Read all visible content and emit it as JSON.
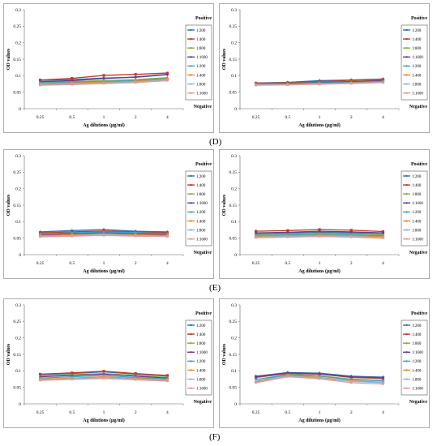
{
  "figure": {
    "labels": [
      {
        "id": "D",
        "text": "(D)"
      },
      {
        "id": "E",
        "text": "(E)"
      },
      {
        "id": "F",
        "text": "(F)"
      }
    ]
  },
  "series_colors": [
    "#3a6fb4",
    "#c0392b",
    "#86ae3a",
    "#6a3d8f",
    "#35a7c2",
    "#f08a24",
    "#8fb4e0",
    "#e39a9a"
  ],
  "chart_data": [
    {
      "type": "line",
      "ylabel": "OD values",
      "xlabel": "Ag dilutions (µg/ml)",
      "categories": [
        "0.25",
        "0.5",
        "1",
        "2",
        "4"
      ],
      "ylim": [
        0,
        0.3
      ],
      "yticks": [
        "0",
        "0.05",
        "0.1",
        "0.15",
        "0.2",
        "0.25",
        "0.3"
      ],
      "legend_top": "Positive",
      "legend_bottom": "Negative",
      "series": [
        {
          "name": "1:200",
          "values": [
            0.086,
            0.088,
            0.093,
            0.095,
            0.103
          ]
        },
        {
          "name": "1:400",
          "values": [
            0.087,
            0.092,
            0.101,
            0.104,
            0.108
          ]
        },
        {
          "name": "1:800",
          "values": [
            0.08,
            0.082,
            0.085,
            0.088,
            0.094
          ]
        },
        {
          "name": "1:1600",
          "values": [
            0.082,
            0.085,
            0.091,
            0.096,
            0.104
          ]
        },
        {
          "name": "1:200",
          "values": [
            0.078,
            0.08,
            0.082,
            0.085,
            0.092
          ]
        },
        {
          "name": "1:400",
          "values": [
            0.075,
            0.078,
            0.08,
            0.083,
            0.09
          ]
        },
        {
          "name": "1:800",
          "values": [
            0.073,
            0.075,
            0.078,
            0.081,
            0.087
          ]
        },
        {
          "name": "1:1600",
          "values": [
            0.071,
            0.073,
            0.076,
            0.079,
            0.085
          ]
        }
      ]
    },
    {
      "type": "line",
      "ylabel": "OD values",
      "xlabel": "Ag dilutions (µg/ml)",
      "categories": [
        "0.25",
        "0.5",
        "1",
        "2",
        "4"
      ],
      "ylim": [
        0,
        0.3
      ],
      "yticks": [
        "0",
        "0.05",
        "0.1",
        "0.15",
        "0.2",
        "0.25",
        "0.3"
      ],
      "legend_top": "Positive",
      "legend_bottom": "Negative",
      "series": [
        {
          "name": "1:200",
          "values": [
            0.078,
            0.08,
            0.085,
            0.087,
            0.09
          ]
        },
        {
          "name": "1:400",
          "values": [
            0.077,
            0.079,
            0.082,
            0.086,
            0.089
          ]
        },
        {
          "name": "1:800",
          "values": [
            0.076,
            0.078,
            0.08,
            0.083,
            0.086
          ]
        },
        {
          "name": "1:1600",
          "values": [
            0.075,
            0.077,
            0.079,
            0.082,
            0.085
          ]
        },
        {
          "name": "1:200",
          "values": [
            0.074,
            0.075,
            0.078,
            0.08,
            0.083
          ]
        },
        {
          "name": "1:400",
          "values": [
            0.073,
            0.074,
            0.076,
            0.078,
            0.081
          ]
        },
        {
          "name": "1:800",
          "values": [
            0.072,
            0.073,
            0.075,
            0.077,
            0.08
          ]
        },
        {
          "name": "1:1600",
          "values": [
            0.071,
            0.072,
            0.074,
            0.076,
            0.079
          ]
        }
      ]
    },
    {
      "type": "line",
      "ylabel": "OD values",
      "xlabel": "Ag dilutions (µg/ml)",
      "categories": [
        "0.25",
        "0.5",
        "1",
        "2",
        "4"
      ],
      "ylim": [
        0,
        0.3
      ],
      "yticks": [
        "0",
        "0.05",
        "0.1",
        "0.15",
        "0.2",
        "0.25",
        "0.3"
      ],
      "legend_top": "Positive",
      "legend_bottom": "Negative",
      "series": [
        {
          "name": "1:200",
          "values": [
            0.069,
            0.073,
            0.076,
            0.071,
            0.069
          ]
        },
        {
          "name": "1:400",
          "values": [
            0.066,
            0.069,
            0.072,
            0.069,
            0.066
          ]
        },
        {
          "name": "1:800",
          "values": [
            0.062,
            0.065,
            0.068,
            0.066,
            0.063
          ]
        },
        {
          "name": "1:1600",
          "values": [
            0.06,
            0.063,
            0.066,
            0.063,
            0.061
          ]
        },
        {
          "name": "1:200",
          "values": [
            0.063,
            0.066,
            0.069,
            0.067,
            0.064
          ]
        },
        {
          "name": "1:400",
          "values": [
            0.058,
            0.06,
            0.062,
            0.06,
            0.058
          ]
        },
        {
          "name": "1:800",
          "values": [
            0.056,
            0.058,
            0.06,
            0.058,
            0.056
          ]
        },
        {
          "name": "1:1600",
          "values": [
            0.054,
            0.056,
            0.058,
            0.056,
            0.055
          ]
        }
      ]
    },
    {
      "type": "line",
      "ylabel": "OD values",
      "xlabel": "Ag dilutions (µg/ml)",
      "categories": [
        "0.25",
        "0.5",
        "1",
        "2",
        "4"
      ],
      "ylim": [
        0,
        0.3
      ],
      "yticks": [
        "0",
        "0.05",
        "0.1",
        "0.15",
        "0.2",
        "0.25",
        "0.3"
      ],
      "legend_top": "Positive",
      "legend_bottom": "Negative",
      "series": [
        {
          "name": "1:200",
          "values": [
            0.064,
            0.066,
            0.068,
            0.066,
            0.064
          ]
        },
        {
          "name": "1:400",
          "values": [
            0.071,
            0.073,
            0.076,
            0.074,
            0.07
          ]
        },
        {
          "name": "1:800",
          "values": [
            0.061,
            0.063,
            0.065,
            0.063,
            0.06
          ]
        },
        {
          "name": "1:1600",
          "values": [
            0.066,
            0.068,
            0.071,
            0.069,
            0.066
          ]
        },
        {
          "name": "1:200",
          "values": [
            0.058,
            0.06,
            0.062,
            0.06,
            0.057
          ]
        },
        {
          "name": "1:400",
          "values": [
            0.055,
            0.057,
            0.059,
            0.057,
            0.054
          ]
        },
        {
          "name": "1:800",
          "values": [
            0.053,
            0.055,
            0.057,
            0.055,
            0.052
          ]
        },
        {
          "name": "1:1600",
          "values": [
            0.051,
            0.053,
            0.055,
            0.053,
            0.05
          ]
        }
      ]
    },
    {
      "type": "line",
      "ylabel": "OD values",
      "xlabel": "Ag dilutions (µg/ml)",
      "categories": [
        "0.25",
        "0.5",
        "1",
        "2",
        "4"
      ],
      "ylim": [
        0,
        0.3
      ],
      "yticks": [
        "0",
        "0.05",
        "0.1",
        "0.15",
        "0.2",
        "0.25",
        "0.3"
      ],
      "legend_top": "Positive",
      "legend_bottom": "Negative",
      "series": [
        {
          "name": "1:200",
          "values": [
            0.088,
            0.092,
            0.097,
            0.09,
            0.084
          ]
        },
        {
          "name": "1:400",
          "values": [
            0.09,
            0.094,
            0.099,
            0.092,
            0.086
          ]
        },
        {
          "name": "1:800",
          "values": [
            0.084,
            0.088,
            0.092,
            0.086,
            0.08
          ]
        },
        {
          "name": "1:1600",
          "values": [
            0.082,
            0.086,
            0.09,
            0.084,
            0.078
          ]
        },
        {
          "name": "1:200",
          "values": [
            0.078,
            0.082,
            0.086,
            0.08,
            0.076
          ]
        },
        {
          "name": "1:400",
          "values": [
            0.075,
            0.078,
            0.082,
            0.077,
            0.073
          ]
        },
        {
          "name": "1:800",
          "values": [
            0.073,
            0.076,
            0.08,
            0.075,
            0.071
          ]
        },
        {
          "name": "1:1600",
          "values": [
            0.071,
            0.074,
            0.077,
            0.073,
            0.069
          ]
        }
      ]
    },
    {
      "type": "line",
      "ylabel": "OD values",
      "xlabel": "Ag dilutions (µg/ml)",
      "categories": [
        "0.25",
        "0.5",
        "1",
        "2",
        "4"
      ],
      "ylim": [
        0,
        0.3
      ],
      "yticks": [
        "0",
        "0.05",
        "0.1",
        "0.15",
        "0.2",
        "0.25",
        "0.3"
      ],
      "legend_top": "Positive",
      "legend_bottom": "Negative",
      "series": [
        {
          "name": "1:200",
          "values": [
            0.084,
            0.095,
            0.093,
            0.084,
            0.081
          ]
        },
        {
          "name": "1:400",
          "values": [
            0.08,
            0.092,
            0.09,
            0.08,
            0.077
          ]
        },
        {
          "name": "1:800",
          "values": [
            0.068,
            0.09,
            0.085,
            0.075,
            0.071
          ]
        },
        {
          "name": "1:1600",
          "values": [
            0.082,
            0.094,
            0.091,
            0.082,
            0.079
          ]
        },
        {
          "name": "1:200",
          "values": [
            0.074,
            0.088,
            0.084,
            0.073,
            0.07
          ]
        },
        {
          "name": "1:400",
          "values": [
            0.066,
            0.086,
            0.08,
            0.069,
            0.066
          ]
        },
        {
          "name": "1:800",
          "values": [
            0.07,
            0.084,
            0.078,
            0.068,
            0.064
          ]
        },
        {
          "name": "1:1600",
          "values": [
            0.064,
            0.082,
            0.076,
            0.064,
            0.06
          ]
        }
      ]
    }
  ]
}
